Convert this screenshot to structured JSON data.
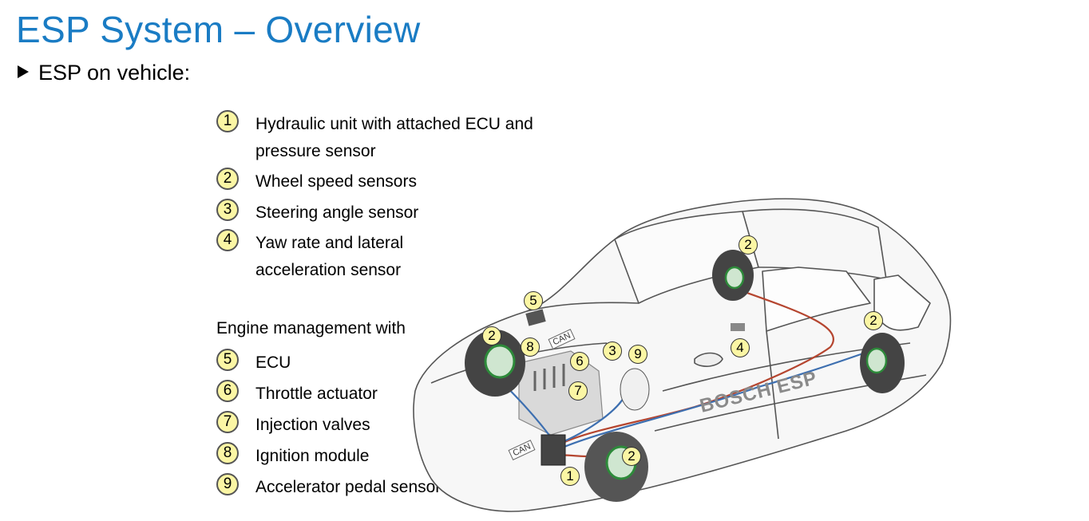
{
  "title": "ESP System – Overview",
  "subtitle": "ESP on vehicle:",
  "legend": [
    {
      "num": "1",
      "line1": "Hydraulic unit with attached ECU and",
      "line2": "pressure sensor"
    },
    {
      "num": "2",
      "line1": "Wheel speed sensors"
    },
    {
      "num": "3",
      "line1": "Steering angle sensor"
    },
    {
      "num": "4",
      "line1": "Yaw rate and lateral",
      "line2": "acceleration sensor"
    }
  ],
  "engine_heading": "Engine management with",
  "engine_items": [
    {
      "num": "5",
      "label": "ECU"
    },
    {
      "num": "6",
      "label": "Throttle actuator"
    },
    {
      "num": "7",
      "label": "Injection valves"
    },
    {
      "num": "8",
      "label": "Ignition module"
    },
    {
      "num": "9",
      "label": "Accelerator pedal sensor"
    }
  ],
  "callouts": {
    "c1": "1",
    "c2a": "2",
    "c2b": "2",
    "c2c": "2",
    "c2d": "2",
    "c3": "3",
    "c4": "4",
    "c5": "5",
    "c6": "6",
    "c7": "7",
    "c8": "8",
    "c9": "9"
  },
  "can_label": "CAN",
  "brand": "BOSCH ESP",
  "colors": {
    "title": "#1a7cc4",
    "callout_fill": "#fbf6a4",
    "brake_line_red": "#b5452f",
    "brake_line_blue": "#3d6fb0"
  }
}
